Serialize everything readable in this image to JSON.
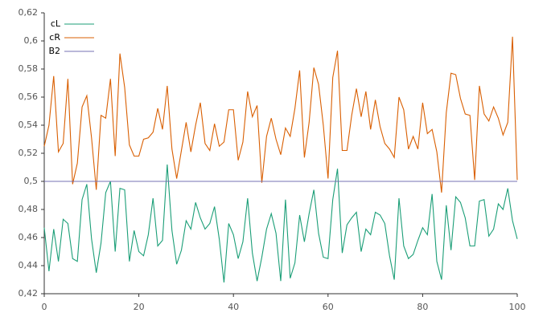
{
  "chart_data": {
    "type": "line",
    "x": [
      0,
      1,
      2,
      3,
      4,
      5,
      6,
      7,
      8,
      9,
      10,
      11,
      12,
      13,
      14,
      15,
      16,
      17,
      18,
      19,
      20,
      21,
      22,
      23,
      24,
      25,
      26,
      27,
      28,
      29,
      30,
      31,
      32,
      33,
      34,
      35,
      36,
      37,
      38,
      39,
      40,
      41,
      42,
      43,
      44,
      45,
      46,
      47,
      48,
      49,
      50,
      51,
      52,
      53,
      54,
      55,
      56,
      57,
      58,
      59,
      60,
      61,
      62,
      63,
      64,
      65,
      66,
      67,
      68,
      69,
      70,
      71,
      72,
      73,
      74,
      75,
      76,
      77,
      78,
      79,
      80,
      81,
      82,
      83,
      84,
      85,
      86,
      87,
      88,
      89,
      90,
      91,
      92,
      93,
      94,
      95,
      96,
      97,
      98,
      99,
      100
    ],
    "series": [
      {
        "name": "cL",
        "color": "#1b9e77",
        "values": [
          0.467,
          0.436,
          0.466,
          0.443,
          0.473,
          0.47,
          0.445,
          0.443,
          0.487,
          0.498,
          0.459,
          0.435,
          0.456,
          0.492,
          0.5,
          0.45,
          0.495,
          0.494,
          0.443,
          0.465,
          0.45,
          0.447,
          0.462,
          0.488,
          0.454,
          0.458,
          0.512,
          0.465,
          0.441,
          0.451,
          0.472,
          0.466,
          0.485,
          0.474,
          0.466,
          0.47,
          0.482,
          0.459,
          0.428,
          0.47,
          0.462,
          0.445,
          0.457,
          0.488,
          0.449,
          0.429,
          0.446,
          0.466,
          0.477,
          0.463,
          0.429,
          0.487,
          0.431,
          0.442,
          0.476,
          0.457,
          0.477,
          0.494,
          0.463,
          0.446,
          0.445,
          0.487,
          0.509,
          0.449,
          0.469,
          0.474,
          0.478,
          0.45,
          0.466,
          0.462,
          0.478,
          0.476,
          0.47,
          0.447,
          0.43,
          0.488,
          0.454,
          0.445,
          0.448,
          0.458,
          0.467,
          0.462,
          0.491,
          0.443,
          0.43,
          0.483,
          0.451,
          0.489,
          0.485,
          0.474,
          0.454,
          0.454,
          0.486,
          0.487,
          0.461,
          0.466,
          0.484,
          0.48,
          0.495,
          0.472,
          0.459
        ]
      },
      {
        "name": "cR",
        "color": "#d95f02",
        "values": [
          0.525,
          0.54,
          0.575,
          0.521,
          0.527,
          0.573,
          0.498,
          0.513,
          0.553,
          0.561,
          0.531,
          0.494,
          0.547,
          0.545,
          0.573,
          0.518,
          0.591,
          0.567,
          0.526,
          0.518,
          0.518,
          0.53,
          0.531,
          0.535,
          0.552,
          0.537,
          0.568,
          0.523,
          0.502,
          0.522,
          0.542,
          0.521,
          0.54,
          0.556,
          0.527,
          0.522,
          0.541,
          0.525,
          0.528,
          0.551,
          0.551,
          0.515,
          0.528,
          0.564,
          0.546,
          0.554,
          0.499,
          0.532,
          0.545,
          0.53,
          0.519,
          0.538,
          0.532,
          0.552,
          0.579,
          0.517,
          0.542,
          0.581,
          0.569,
          0.54,
          0.502,
          0.574,
          0.593,
          0.522,
          0.522,
          0.547,
          0.566,
          0.546,
          0.564,
          0.537,
          0.558,
          0.539,
          0.527,
          0.523,
          0.517,
          0.56,
          0.551,
          0.523,
          0.532,
          0.523,
          0.556,
          0.534,
          0.537,
          0.521,
          0.492,
          0.549,
          0.577,
          0.576,
          0.559,
          0.548,
          0.547,
          0.501,
          0.568,
          0.548,
          0.543,
          0.553,
          0.545,
          0.533,
          0.542,
          0.603,
          0.501
        ]
      },
      {
        "name": "B2",
        "color": "#7570b3",
        "x": [
          0,
          100
        ],
        "values": [
          0.5,
          0.5
        ]
      }
    ],
    "xlim": [
      0,
      100
    ],
    "xticks": [
      0,
      20,
      40,
      60,
      80,
      100
    ],
    "ylim": [
      0.42,
      0.62
    ],
    "yticks": [
      {
        "value": 0.42,
        "label": "0,42"
      },
      {
        "value": 0.44,
        "label": "0,44"
      },
      {
        "value": 0.46,
        "label": "0,46"
      },
      {
        "value": 0.48,
        "label": "0,48"
      },
      {
        "value": 0.5,
        "label": "0,5"
      },
      {
        "value": 0.52,
        "label": "0,52"
      },
      {
        "value": 0.54,
        "label": "0,54"
      },
      {
        "value": 0.56,
        "label": "0,56"
      },
      {
        "value": 0.58,
        "label": "0,58"
      },
      {
        "value": 0.6,
        "label": "0,6"
      },
      {
        "value": 0.62,
        "label": "0,62"
      }
    ],
    "legend": "top-left"
  }
}
